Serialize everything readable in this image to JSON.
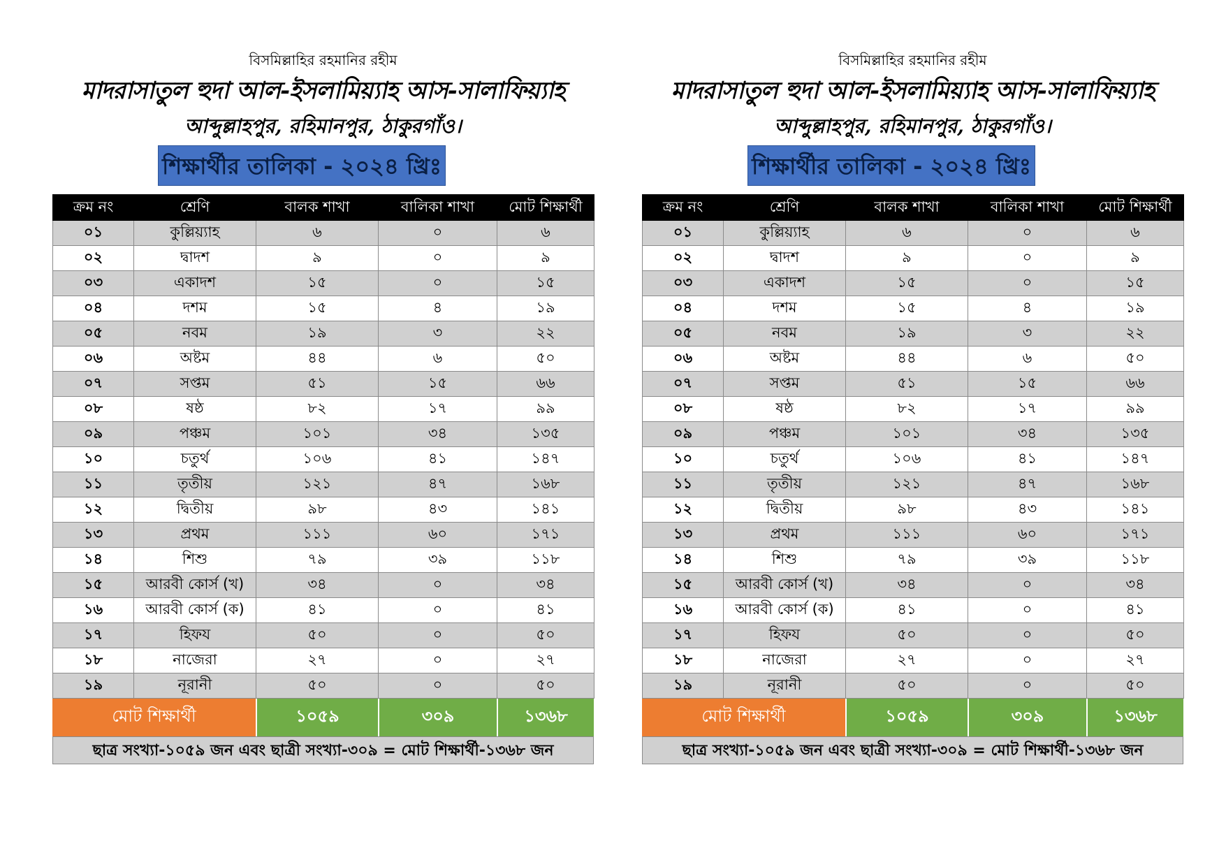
{
  "header": {
    "bismillah": "বিসমিল্লাহির রহমানির রহীম",
    "madrasa_name": "মাদরাসাতুল হুদা আল-ইসলামিয়্যাহ আস-সালাফিয়্যাহ",
    "address": "আব্দুল্লাহপুর, রহিমানপুর, ঠাকুরগাঁও।",
    "list_title": "শিক্ষার্থীর তালিকা - ২০২৪ খ্রিঃ"
  },
  "table": {
    "columns": [
      "ক্রম নং",
      "শ্রেণি",
      "বালক শাখা",
      "বালিকা শাখা",
      "মোট শিক্ষার্থী"
    ],
    "rows": [
      [
        "০১",
        "কুল্লিয়্যাহ",
        "৬",
        "০",
        "৬"
      ],
      [
        "০২",
        "দ্বাদশ",
        "৯",
        "০",
        "৯"
      ],
      [
        "০৩",
        "একাদশ",
        "১৫",
        "০",
        "১৫"
      ],
      [
        "০৪",
        "দশম",
        "১৫",
        "৪",
        "১৯"
      ],
      [
        "০৫",
        "নবম",
        "১৯",
        "৩",
        "২২"
      ],
      [
        "০৬",
        "অষ্টম",
        "৪৪",
        "৬",
        "৫০"
      ],
      [
        "০৭",
        "সপ্তম",
        "৫১",
        "১৫",
        "৬৬"
      ],
      [
        "০৮",
        "ষষ্ঠ",
        "৮২",
        "১৭",
        "৯৯"
      ],
      [
        "০৯",
        "পঞ্চম",
        "১০১",
        "৩৪",
        "১৩৫"
      ],
      [
        "১০",
        "চতুর্থ",
        "১০৬",
        "৪১",
        "১৪৭"
      ],
      [
        "১১",
        "তৃতীয়",
        "১২১",
        "৪৭",
        "১৬৮"
      ],
      [
        "১২",
        "দ্বিতীয়",
        "৯৮",
        "৪৩",
        "১৪১"
      ],
      [
        "১৩",
        "প্রথম",
        "১১১",
        "৬০",
        "১৭১"
      ],
      [
        "১৪",
        "শিশু",
        "৭৯",
        "৩৯",
        "১১৮"
      ],
      [
        "১৫",
        "আরবী কোর্স (খ)",
        "৩৪",
        "০",
        "৩৪"
      ],
      [
        "১৬",
        "আরবী কোর্স (ক)",
        "৪১",
        "০",
        "৪১"
      ],
      [
        "১৭",
        "হিফয",
        "৫০",
        "০",
        "৫০"
      ],
      [
        "১৮",
        "নাজেরা",
        "২৭",
        "০",
        "২৭"
      ],
      [
        "১৯",
        "নূরানী",
        "৫০",
        "০",
        "৫০"
      ]
    ]
  },
  "totals": {
    "label": "মোট শিক্ষার্থী",
    "boys": "১০৫৯",
    "girls": "৩০৯",
    "all": "১৩৬৮"
  },
  "summary": "ছাত্র সংখ্যা-১০৫৯ জন এবং ছাত্রী সংখ্যা-৩০৯ = মোট শিক্ষার্থী-১৩৬৮ জন",
  "colors": {
    "title_bg": "#4472c4",
    "header_bg": "#000000",
    "row_shade": "#d0d0d0",
    "totals_label_bg": "#ed7d31",
    "totals_value_bg": "#70ad47"
  }
}
